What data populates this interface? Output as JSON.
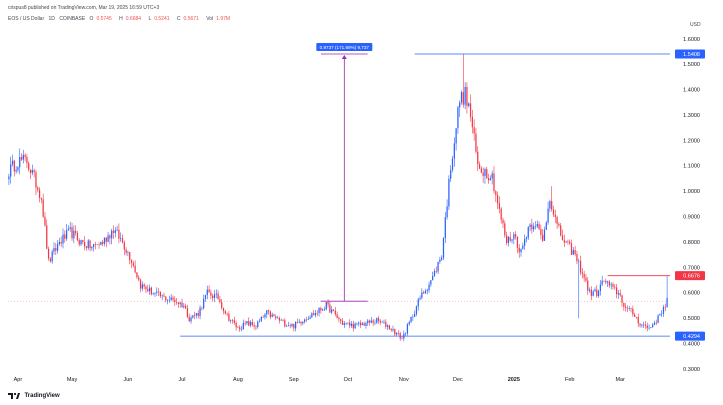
{
  "header": {
    "publisher": "crispus8 published on TradingView.com, Mar 19, 2025 16:59 UTC+3",
    "symbol": "EOS / US Dollar",
    "interval": "1D",
    "exchange": "COINBASE",
    "ohlc": [
      {
        "label": "O",
        "value": "0.5745"
      },
      {
        "label": "H",
        "value": "0.6684"
      },
      {
        "label": "L",
        "value": "0.5241"
      },
      {
        "label": "C",
        "value": "0.5671"
      },
      {
        "label": "Vol",
        "value": "1.97M"
      }
    ],
    "currency": "USD"
  },
  "footer": {
    "brand": "TradingView"
  },
  "colors": {
    "up": "#2962ff",
    "down": "#f23645",
    "resistance": "#2962ff",
    "measure": "#9c27b0",
    "price_tag": "#f23645"
  },
  "chart_data": {
    "type": "candlestick",
    "title": "",
    "xlabel": "",
    "ylabel": "",
    "ylim": [
      0.3,
      1.65
    ],
    "y_ticks": [
      "1.6000",
      "1.5000",
      "1.4000",
      "1.3000",
      "1.2000",
      "1.1000",
      "1.0000",
      "0.9000",
      "0.8000",
      "0.7000",
      "0.6000",
      "0.5000",
      "0.4000",
      "0.3000"
    ],
    "x_ticks": [
      {
        "label": "Apr",
        "index": 5
      },
      {
        "label": "May",
        "index": 35
      },
      {
        "label": "Jun",
        "index": 66
      },
      {
        "label": "Jul",
        "index": 96
      },
      {
        "label": "Aug",
        "index": 127
      },
      {
        "label": "Sep",
        "index": 158
      },
      {
        "label": "Oct",
        "index": 188
      },
      {
        "label": "Nov",
        "index": 219
      },
      {
        "label": "Dec",
        "index": 249
      },
      {
        "label": "2025",
        "index": 280
      },
      {
        "label": "Feb",
        "index": 311
      },
      {
        "label": "Mar",
        "index": 339
      }
    ],
    "candle_count": 366,
    "anchors": [
      [
        0,
        1.08
      ],
      [
        5,
        1.12
      ],
      [
        10,
        1.12
      ],
      [
        14,
        1.05
      ],
      [
        18,
        0.98
      ],
      [
        22,
        0.72
      ],
      [
        28,
        0.8
      ],
      [
        34,
        0.84
      ],
      [
        40,
        0.8
      ],
      [
        46,
        0.78
      ],
      [
        52,
        0.8
      ],
      [
        58,
        0.85
      ],
      [
        63,
        0.8
      ],
      [
        68,
        0.73
      ],
      [
        73,
        0.63
      ],
      [
        80,
        0.6
      ],
      [
        86,
        0.58
      ],
      [
        92,
        0.57
      ],
      [
        97,
        0.55
      ],
      [
        100,
        0.5
      ],
      [
        105,
        0.52
      ],
      [
        110,
        0.6
      ],
      [
        116,
        0.58
      ],
      [
        121,
        0.51
      ],
      [
        127,
        0.46
      ],
      [
        132,
        0.48
      ],
      [
        137,
        0.47
      ],
      [
        143,
        0.52
      ],
      [
        148,
        0.5
      ],
      [
        153,
        0.48
      ],
      [
        158,
        0.47
      ],
      [
        164,
        0.5
      ],
      [
        170,
        0.52
      ],
      [
        176,
        0.55
      ],
      [
        180,
        0.52
      ],
      [
        185,
        0.48
      ],
      [
        192,
        0.47
      ],
      [
        198,
        0.48
      ],
      [
        204,
        0.49
      ],
      [
        210,
        0.47
      ],
      [
        215,
        0.44
      ],
      [
        218,
        0.42
      ],
      [
        222,
        0.48
      ],
      [
        228,
        0.58
      ],
      [
        235,
        0.66
      ],
      [
        240,
        0.75
      ],
      [
        245,
        1.1
      ],
      [
        250,
        1.36
      ],
      [
        253,
        1.38
      ],
      [
        256,
        1.3
      ],
      [
        260,
        1.1
      ],
      [
        264,
        1.08
      ],
      [
        268,
        1.06
      ],
      [
        272,
        0.92
      ],
      [
        276,
        0.8
      ],
      [
        280,
        0.83
      ],
      [
        284,
        0.76
      ],
      [
        288,
        0.86
      ],
      [
        292,
        0.88
      ],
      [
        296,
        0.8
      ],
      [
        300,
        0.98
      ],
      [
        304,
        0.86
      ],
      [
        308,
        0.8
      ],
      [
        313,
        0.76
      ],
      [
        318,
        0.68
      ],
      [
        322,
        0.6
      ],
      [
        326,
        0.6
      ],
      [
        330,
        0.65
      ],
      [
        334,
        0.62
      ],
      [
        338,
        0.6
      ],
      [
        342,
        0.54
      ],
      [
        346,
        0.52
      ],
      [
        350,
        0.48
      ],
      [
        355,
        0.46
      ],
      [
        360,
        0.5
      ],
      [
        365,
        0.57
      ]
    ],
    "spikes": [
      {
        "index": 252,
        "high": 1.54
      },
      {
        "index": 301,
        "high": 1.02
      },
      {
        "index": 316,
        "low": 0.5
      },
      {
        "index": 365,
        "high": 0.6684
      }
    ],
    "horizontal_lines": [
      {
        "name": "resistance-line",
        "price": 1.5408,
        "start_index": 225,
        "label": "1.5408"
      },
      {
        "name": "support-line",
        "price": 0.4294,
        "start_index": 95,
        "label": "0.4294"
      },
      {
        "name": "current-price-line",
        "price": 0.6676,
        "start_index": 332,
        "label": "0.6676"
      }
    ],
    "measure": {
      "index": 186,
      "from_price": 0.5671,
      "to_price": 1.5408,
      "half_width": 13,
      "label": "0.9737 (171.69%) 9,737"
    }
  }
}
